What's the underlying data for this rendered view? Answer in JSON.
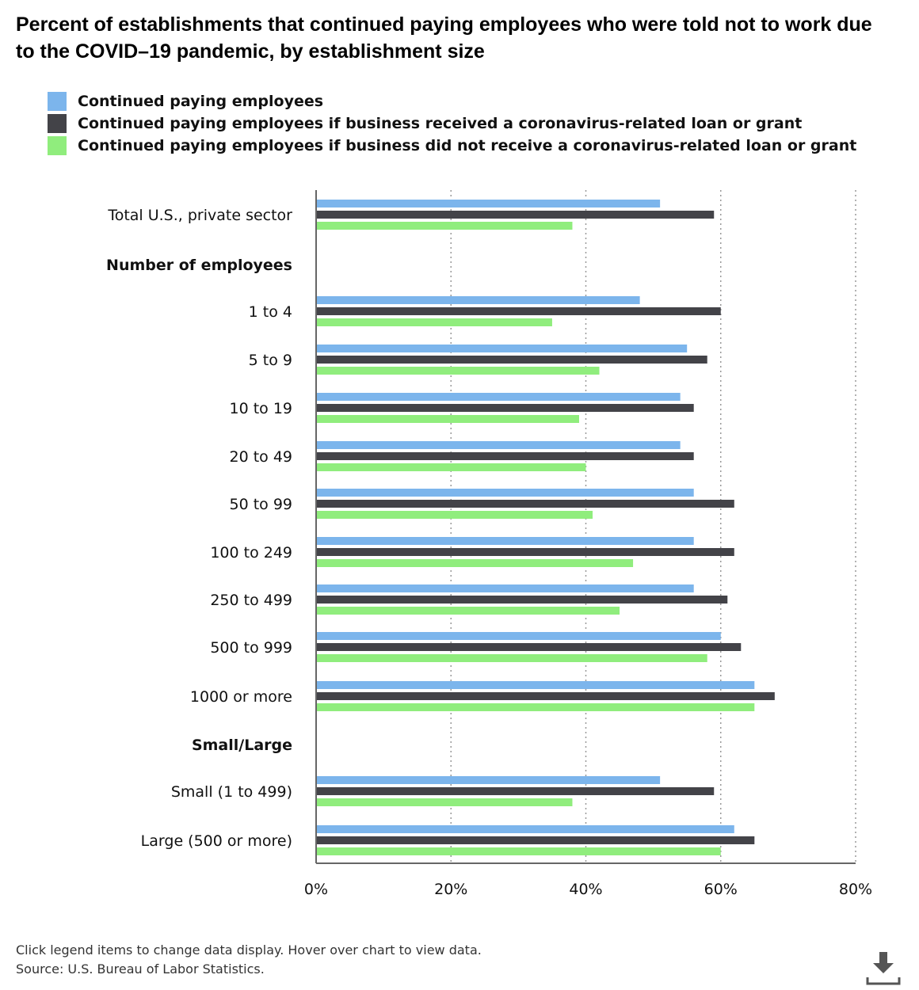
{
  "title": "Percent of establishments that continued paying employees who were told not to work due to the COVID–19 pandemic, by establishment size",
  "legend": {
    "items": [
      {
        "label": "Continued paying employees",
        "color": "#7cb5ec"
      },
      {
        "label": "Continued paying employees if business received a coronavirus-related loan or grant",
        "color": "#434348"
      },
      {
        "label": "Continued paying employees if business did not receive a coronavirus-related loan or grant",
        "color": "#90ed7d"
      }
    ]
  },
  "chart_data": {
    "type": "bar",
    "orientation": "horizontal",
    "categories": [
      "Total U.S., private sector",
      "Number of employees",
      "1 to 4",
      "5 to 9",
      "10 to 19",
      "20 to 49",
      "50 to 99",
      "100 to 249",
      "250 to 499",
      "500 to 999",
      "1000 or more",
      "Small/Large",
      "Small (1 to 499)",
      "Large (500 or more)"
    ],
    "heading_categories": [
      "Number of employees",
      "Small/Large"
    ],
    "series": [
      {
        "name": "Continued paying employees",
        "color": "#7cb5ec",
        "values": [
          51,
          null,
          48,
          55,
          54,
          54,
          56,
          56,
          56,
          60,
          65,
          null,
          51,
          62
        ]
      },
      {
        "name": "Continued paying employees if business received a coronavirus-related loan or grant",
        "color": "#434348",
        "values": [
          59,
          null,
          60,
          58,
          56,
          56,
          62,
          62,
          61,
          63,
          68,
          null,
          59,
          65
        ]
      },
      {
        "name": "Continued paying employees if business did not receive a coronavirus-related loan or grant",
        "color": "#90ed7d",
        "values": [
          38,
          null,
          35,
          42,
          39,
          40,
          41,
          47,
          45,
          58,
          65,
          null,
          38,
          60
        ]
      }
    ],
    "xlim": [
      0,
      80
    ],
    "x_ticks": [
      "0%",
      "20%",
      "40%",
      "60%",
      "80%"
    ],
    "tick_values": [
      0,
      20,
      40,
      60,
      80
    ],
    "grid": true
  },
  "footer": {
    "line1": "Click legend items to change data display. Hover over chart to view data.",
    "line2": "Source: U.S. Bureau of Labor Statistics."
  },
  "download_icon": "download-icon"
}
